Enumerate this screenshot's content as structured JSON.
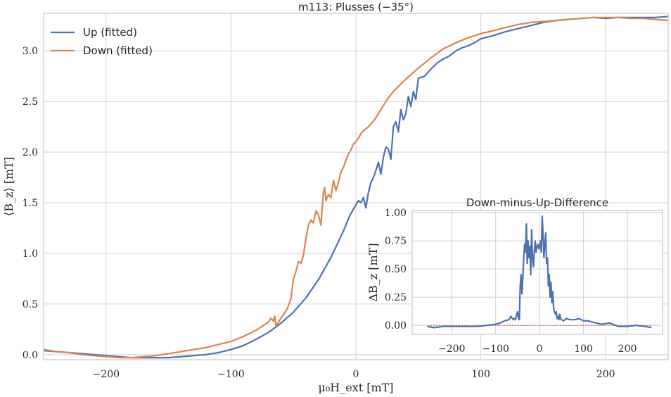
{
  "chart_data": [
    {
      "type": "line",
      "title": "m113: Plusses (−35°)",
      "xlabel": "μ₀H_ext [mT]",
      "ylabel": "⟨B_z⟩ [mT]",
      "xlim": [
        -250,
        250
      ],
      "ylim": [
        -0.05,
        3.37
      ],
      "grid": true,
      "legend_position": "top-left",
      "x_ticks": [
        "−200",
        "−100",
        "0",
        "100",
        "200"
      ],
      "x_tick_values": [
        -200,
        -100,
        0,
        100,
        200
      ],
      "y_ticks": [
        "0.0",
        "0.5",
        "1.0",
        "1.5",
        "2.0",
        "2.5",
        "3.0"
      ],
      "y_tick_values": [
        0,
        0.5,
        1.0,
        1.5,
        2.0,
        2.5,
        3.0
      ],
      "series": [
        {
          "name": "Up (fitted)",
          "color": "#4c72b0",
          "x": [
            -250,
            -240,
            -230,
            -220,
            -210,
            -200,
            -190,
            -180,
            -170,
            -160,
            -150,
            -140,
            -130,
            -120,
            -110,
            -100,
            -90,
            -80,
            -70,
            -60,
            -50,
            -40,
            -30,
            -20,
            -10,
            -5,
            0,
            2,
            4,
            6,
            8,
            10,
            12,
            14,
            16,
            18,
            20,
            22,
            24,
            26,
            28,
            30,
            32,
            34,
            36,
            38,
            40,
            42,
            44,
            46,
            48,
            50,
            55,
            60,
            65,
            70,
            75,
            80,
            85,
            90,
            95,
            100,
            110,
            120,
            130,
            140,
            150,
            160,
            170,
            180,
            190,
            200,
            210,
            220,
            230,
            240,
            250
          ],
          "y": [
            0.04,
            0.03,
            0.02,
            0.01,
            0.0,
            -0.01,
            -0.02,
            -0.03,
            -0.03,
            -0.03,
            -0.03,
            -0.02,
            -0.01,
            0.0,
            0.02,
            0.05,
            0.09,
            0.15,
            0.22,
            0.31,
            0.42,
            0.56,
            0.74,
            0.96,
            1.22,
            1.37,
            1.48,
            1.52,
            1.5,
            1.55,
            1.45,
            1.6,
            1.7,
            1.75,
            1.82,
            1.9,
            1.78,
            1.95,
            2.05,
            2.03,
            1.93,
            2.25,
            2.3,
            2.2,
            2.42,
            2.32,
            2.38,
            2.55,
            2.45,
            2.6,
            2.52,
            2.73,
            2.75,
            2.82,
            2.88,
            2.92,
            2.95,
            3.0,
            3.03,
            3.05,
            3.08,
            3.12,
            3.15,
            3.19,
            3.22,
            3.25,
            3.28,
            3.3,
            3.31,
            3.32,
            3.33,
            3.32,
            3.33,
            3.33,
            3.33,
            3.33,
            3.34
          ]
        },
        {
          "name": "Down (fitted)",
          "color": "#dd8452",
          "x": [
            -250,
            -240,
            -230,
            -220,
            -210,
            -200,
            -190,
            -180,
            -170,
            -160,
            -150,
            -140,
            -130,
            -120,
            -110,
            -100,
            -90,
            -80,
            -75,
            -70,
            -68,
            -66,
            -65,
            -64,
            -60,
            -55,
            -52,
            -50,
            -48,
            -46,
            -44,
            -42,
            -40,
            -38,
            -36,
            -34,
            -32,
            -30,
            -28,
            -26,
            -25,
            -24,
            -22,
            -20,
            -18,
            -16,
            -14,
            -12,
            -10,
            -8,
            -6,
            -4,
            -2,
            0,
            5,
            10,
            15,
            20,
            25,
            30,
            40,
            50,
            60,
            70,
            80,
            90,
            100,
            110,
            120,
            130,
            140,
            150,
            160,
            170,
            180,
            190,
            200,
            210,
            220,
            230,
            240,
            250
          ],
          "y": [
            0.05,
            0.03,
            0.02,
            0.0,
            -0.01,
            -0.02,
            -0.03,
            -0.03,
            -0.02,
            -0.01,
            0.01,
            0.03,
            0.05,
            0.07,
            0.1,
            0.13,
            0.18,
            0.24,
            0.28,
            0.32,
            0.36,
            0.33,
            0.38,
            0.28,
            0.36,
            0.45,
            0.55,
            0.75,
            0.82,
            0.92,
            0.9,
            0.98,
            1.15,
            1.28,
            1.33,
            1.3,
            1.42,
            1.38,
            1.28,
            1.6,
            1.65,
            1.52,
            1.58,
            1.55,
            1.72,
            1.62,
            1.7,
            1.8,
            1.85,
            1.92,
            1.98,
            2.02,
            2.08,
            2.1,
            2.2,
            2.25,
            2.32,
            2.42,
            2.52,
            2.6,
            2.72,
            2.83,
            2.93,
            3.02,
            3.08,
            3.13,
            3.17,
            3.2,
            3.23,
            3.26,
            3.28,
            3.29,
            3.3,
            3.31,
            3.32,
            3.33,
            3.33,
            3.33,
            3.32,
            3.32,
            3.31,
            3.3
          ]
        }
      ]
    },
    {
      "type": "line",
      "title": "Down-minus-Up-Difference",
      "xlabel": "",
      "ylabel": "ΔB_z [mT]",
      "xlim": [
        -290,
        280
      ],
      "ylim": [
        -0.08,
        1.02
      ],
      "grid": true,
      "x_ticks": [
        "−200",
        "−100",
        "0",
        "100",
        "200"
      ],
      "x_tick_values": [
        -200,
        -100,
        0,
        100,
        200
      ],
      "y_ticks": [
        "0.00",
        "0.25",
        "0.50",
        "0.75",
        "1.00"
      ],
      "y_tick_values": [
        0,
        0.25,
        0.5,
        0.75,
        1.0
      ],
      "reference_line": {
        "y": 0,
        "color": "#c44e52",
        "style": "dashed"
      },
      "series": [
        {
          "name": "",
          "color": "#4c72b0",
          "x": [
            -255,
            -240,
            -220,
            -200,
            -180,
            -160,
            -140,
            -120,
            -100,
            -90,
            -80,
            -70,
            -65,
            -60,
            -58,
            -55,
            -52,
            -50,
            -48,
            -46,
            -44,
            -42,
            -40,
            -38,
            -36,
            -34,
            -32,
            -30,
            -28,
            -26,
            -24,
            -22,
            -20,
            -18,
            -16,
            -14,
            -12,
            -10,
            -8,
            -6,
            -4,
            -2,
            0,
            2,
            4,
            6,
            8,
            10,
            12,
            14,
            16,
            18,
            20,
            22,
            24,
            26,
            28,
            30,
            32,
            34,
            36,
            38,
            40,
            42,
            44,
            46,
            48,
            50,
            55,
            60,
            70,
            80,
            90,
            100,
            110,
            120,
            140,
            160,
            180,
            200,
            220,
            240,
            255
          ],
          "y": [
            -0.01,
            -0.02,
            -0.01,
            -0.01,
            -0.01,
            -0.01,
            -0.01,
            -0.0,
            0.01,
            0.02,
            0.04,
            0.05,
            0.08,
            0.05,
            0.06,
            0.05,
            0.1,
            0.12,
            0.06,
            0.05,
            0.35,
            0.45,
            0.28,
            0.42,
            0.6,
            0.72,
            0.65,
            0.9,
            0.55,
            0.75,
            0.6,
            0.7,
            0.45,
            0.85,
            0.6,
            0.52,
            0.65,
            0.75,
            0.65,
            0.7,
            0.72,
            0.68,
            0.7,
            0.75,
            0.65,
            0.97,
            0.8,
            0.6,
            0.72,
            0.82,
            0.55,
            0.6,
            0.35,
            0.45,
            0.25,
            0.38,
            0.2,
            0.3,
            0.15,
            0.12,
            0.1,
            0.12,
            0.06,
            0.08,
            0.05,
            0.1,
            0.06,
            0.05,
            0.04,
            0.06,
            0.05,
            0.05,
            0.06,
            0.04,
            0.04,
            0.03,
            0.01,
            0.02,
            -0.01,
            -0.01,
            -0.0,
            -0.01,
            -0.02
          ]
        }
      ]
    }
  ]
}
